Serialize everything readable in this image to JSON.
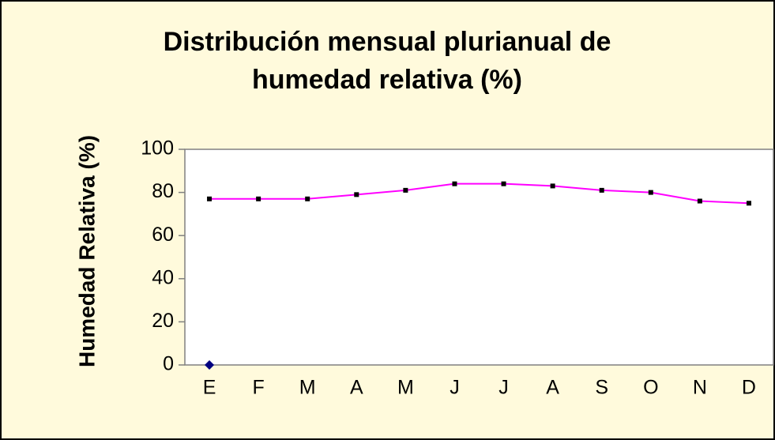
{
  "chart_data": {
    "type": "line",
    "title": [
      "Distribución mensual plurianual de",
      "humedad relativa (%)"
    ],
    "y_label": "Humedad Relativa (%)",
    "categories": [
      "E",
      "F",
      "M",
      "A",
      "M",
      "J",
      "J",
      "A",
      "S",
      "O",
      "N",
      "D"
    ],
    "series": [
      {
        "color": "#ff00ff",
        "marker_color": "#000000",
        "values": [
          77,
          77,
          77,
          79,
          81,
          84,
          84,
          83,
          81,
          80,
          76,
          75
        ]
      },
      {
        "color": "#000080",
        "values": [
          0,
          null,
          null,
          null,
          null,
          null,
          null,
          null,
          null,
          null,
          null,
          null
        ]
      }
    ],
    "ylim": [
      0,
      100
    ],
    "yticks": [
      0,
      20,
      40,
      60,
      80,
      100
    ],
    "grid": false
  }
}
